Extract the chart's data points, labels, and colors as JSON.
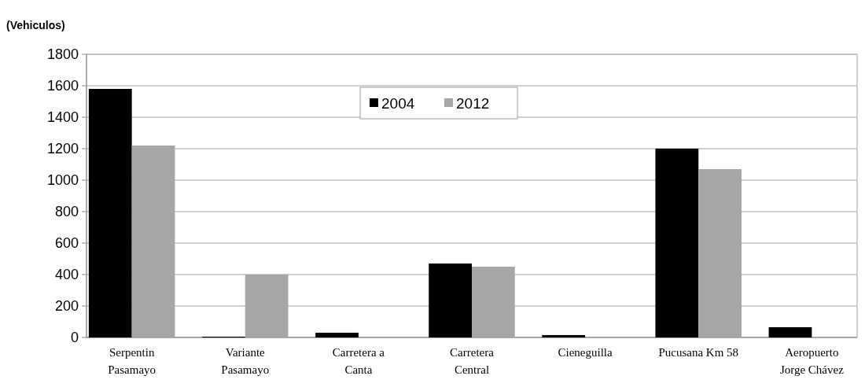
{
  "chart_data": {
    "type": "bar",
    "ylabel": "(Vehiculos)",
    "categories": [
      "Serpentin Pasamayo",
      "Variante Pasamayo",
      "Carretera a Canta",
      "Carretera Central",
      "Cieneguilla",
      "Pucusana Km 58",
      "Aeropuerto Jorge Chávez"
    ],
    "series": [
      {
        "name": "2004",
        "color": "#000000",
        "values": [
          1580,
          5,
          30,
          470,
          15,
          1200,
          65
        ]
      },
      {
        "name": "2012",
        "color": "#a6a6a6",
        "values": [
          1220,
          400,
          0,
          450,
          0,
          1070,
          0
        ]
      }
    ],
    "ylim": [
      0,
      1800
    ],
    "yticks": [
      0,
      200,
      400,
      600,
      800,
      1000,
      1200,
      1400,
      1600,
      1800
    ],
    "grid": "y",
    "legend": "top"
  }
}
